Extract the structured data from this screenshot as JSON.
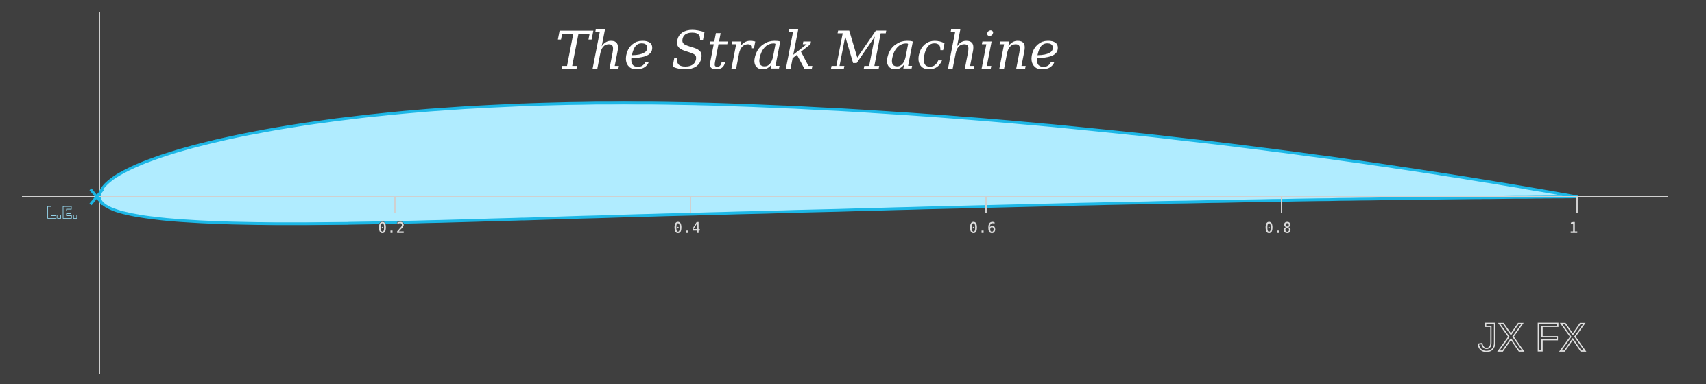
{
  "title": "The Strak Machine",
  "le_label": "L.E.",
  "brand": "JX FX",
  "colors": {
    "background": "#3f3f3f",
    "airfoil_fill": "#b0ecff",
    "airfoil_stroke": "#1cb7e6",
    "axis": "#d0d0d0",
    "text": "#ffffff"
  },
  "chart_data": {
    "type": "line",
    "xlim": [
      0,
      1
    ],
    "x_ticks": [
      0.2,
      0.4,
      0.6,
      0.8,
      1
    ],
    "x_tick_labels": [
      "0.2",
      "0.4",
      "0.6",
      "0.8",
      "1"
    ],
    "airfoil_shape": {
      "max_thickness": 0.085,
      "thickness_position": 0.28,
      "max_camber": 0.022,
      "camber_position": 0.42
    },
    "grid": false,
    "legend": "none"
  }
}
